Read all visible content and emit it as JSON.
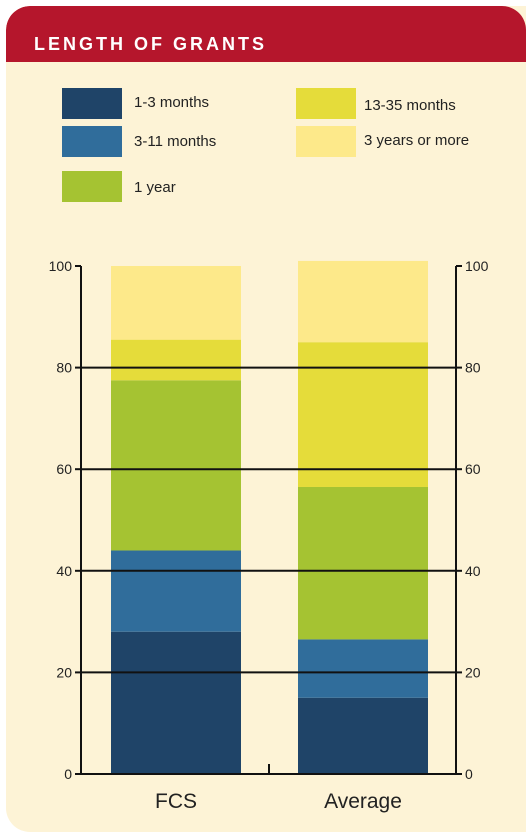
{
  "header": {
    "title": "LENGTH OF GRANTS"
  },
  "colors": {
    "header": "#b5162c",
    "background": "#fdf3d6",
    "1-3 months": "#1f4468",
    "3-11 months": "#306d9b",
    "1 year": "#a5c332",
    "13-35 months": "#e5dc3a",
    "3 years or more": "#fde98a"
  },
  "legend": [
    {
      "label": "1-3 months",
      "color": "#1f4468"
    },
    {
      "label": "3-11 months",
      "color": "#306d9b"
    },
    {
      "label": "1 year",
      "color": "#a5c332"
    },
    {
      "label": "13-35 months",
      "color": "#e5dc3a"
    },
    {
      "label": "3 years or more",
      "color": "#fde98a"
    }
  ],
  "chart_data": {
    "type": "bar",
    "stacked": true,
    "categories": [
      "FCS",
      "Average"
    ],
    "series": [
      {
        "name": "1-3 months",
        "values": [
          28,
          15
        ]
      },
      {
        "name": "3-11 months",
        "values": [
          16,
          11.5
        ]
      },
      {
        "name": "1 year",
        "values": [
          33.5,
          30
        ]
      },
      {
        "name": "13-35 months",
        "values": [
          8,
          28.5
        ]
      },
      {
        "name": "3 years or more",
        "values": [
          14.5,
          16
        ]
      }
    ],
    "ylim": [
      0,
      100
    ],
    "yticks": [
      "0",
      "20",
      "40",
      "60",
      "80",
      "100"
    ],
    "gridlines": [
      20,
      40,
      60,
      80
    ],
    "legend_position": "top"
  }
}
